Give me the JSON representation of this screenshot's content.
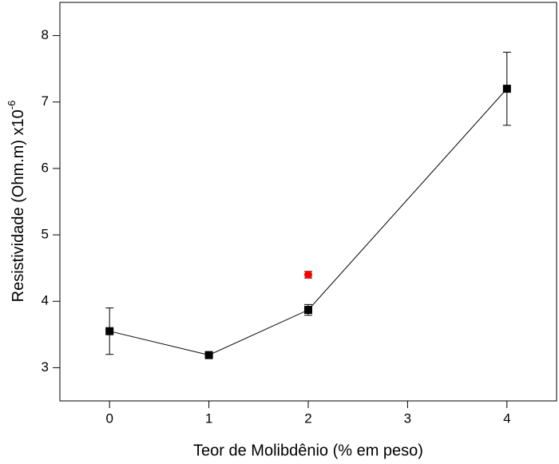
{
  "chart_data": {
    "type": "scatter",
    "x_label": "Teor de Molibdênio (% em peso)",
    "y_label": "Resistividade (Ohm.m) x10",
    "y_label_exponent": "-6",
    "xlim": [
      -0.5,
      4.5
    ],
    "xticks": [
      0,
      1,
      2,
      3,
      4
    ],
    "ylim": [
      2.5,
      8.5
    ],
    "yticks": [
      3,
      4,
      5,
      6,
      7,
      8
    ],
    "series": [
      {
        "color": "#000000",
        "marker": "square",
        "line": true,
        "x": [
          0,
          1,
          2,
          4
        ],
        "values": [
          3.55,
          3.19,
          3.87,
          7.2
        ],
        "errors": [
          0.35,
          0.02,
          0.08,
          0.55
        ]
      },
      {
        "color": "#ff0000",
        "marker": "circle",
        "line": false,
        "x": [
          2
        ],
        "values": [
          4.4
        ],
        "errors": [
          0.05
        ]
      }
    ]
  }
}
